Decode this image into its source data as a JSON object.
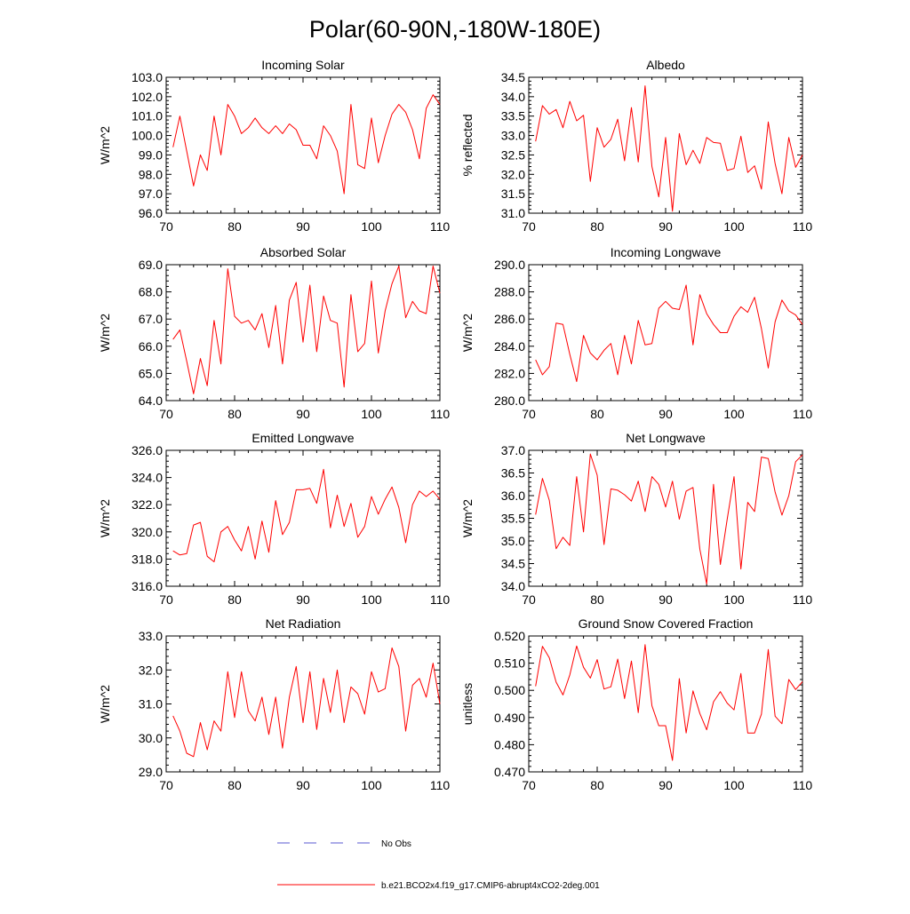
{
  "figure": {
    "title": "Polar(60-90N,-180W-180E)"
  },
  "legend": {
    "entries": [
      {
        "label": "No Obs",
        "color": "#5a5ad0",
        "style": "dashed"
      },
      {
        "label": "b.e21.BCO2x4.f19_g17.CMIP6-abrupt4xCO2-2deg.001",
        "color": "#ff0000",
        "style": "solid"
      }
    ]
  },
  "chart_data": [
    {
      "type": "line",
      "title": "Incoming Solar",
      "xlabel": "",
      "ylabel": "W/m^2",
      "xlim": [
        70,
        110
      ],
      "ylim": [
        96,
        103
      ],
      "xticks": [
        70,
        80,
        90,
        100,
        110
      ],
      "yticks": [
        96,
        97,
        98,
        99,
        100,
        101,
        102,
        103
      ],
      "ytick_labels": [
        "96.0",
        "97.0",
        "98.0",
        "99.0",
        "100.0",
        "101.0",
        "102.0",
        "103.0"
      ],
      "series": [
        {
          "name": "b.e21.BCO2x4.f19_g17.CMIP6-abrupt4xCO2-2deg.001",
          "color": "#ff0000",
          "x": [
            71,
            72,
            73,
            74,
            75,
            76,
            77,
            78,
            79,
            80,
            81,
            82,
            83,
            84,
            85,
            86,
            87,
            88,
            89,
            90,
            91,
            92,
            93,
            94,
            95,
            96,
            97,
            98,
            99,
            100,
            101,
            102,
            103,
            104,
            105,
            106,
            107,
            108,
            109,
            110
          ],
          "values": [
            99.4,
            101.0,
            99.2,
            97.4,
            99.0,
            98.2,
            101.0,
            99.0,
            101.6,
            101.0,
            100.1,
            100.4,
            100.9,
            100.4,
            100.1,
            100.5,
            100.1,
            100.6,
            100.3,
            99.5,
            99.5,
            98.8,
            100.5,
            100.0,
            99.2,
            97.0,
            101.6,
            98.5,
            98.3,
            100.9,
            98.6,
            100.0,
            101.1,
            101.6,
            101.2,
            100.3,
            98.8,
            101.4,
            102.1,
            101.6
          ]
        }
      ]
    },
    {
      "type": "line",
      "title": "Albedo",
      "xlabel": "",
      "ylabel": "% reflected",
      "xlim": [
        70,
        110
      ],
      "ylim": [
        31,
        34.5
      ],
      "xticks": [
        70,
        80,
        90,
        100,
        110
      ],
      "yticks": [
        31.0,
        31.5,
        32.0,
        32.5,
        33.0,
        33.5,
        34.0,
        34.5
      ],
      "ytick_labels": [
        "31.0",
        "31.5",
        "32.0",
        "32.5",
        "33.0",
        "33.5",
        "34.0",
        "34.5"
      ],
      "series": [
        {
          "name": "b.e21.BCO2x4.f19_g17.CMIP6-abrupt4xCO2-2deg.001",
          "color": "#ff0000",
          "x": [
            71,
            72,
            73,
            74,
            75,
            76,
            77,
            78,
            79,
            80,
            81,
            82,
            83,
            84,
            85,
            86,
            87,
            88,
            89,
            90,
            91,
            92,
            93,
            94,
            95,
            96,
            97,
            98,
            99,
            100,
            101,
            102,
            103,
            104,
            105,
            106,
            107,
            108,
            109,
            110
          ],
          "values": [
            32.85,
            33.77,
            33.55,
            33.67,
            33.2,
            33.88,
            33.38,
            33.52,
            31.82,
            33.2,
            32.7,
            32.9,
            33.42,
            32.35,
            33.72,
            32.32,
            34.28,
            32.2,
            31.42,
            32.95,
            31.05,
            33.05,
            32.25,
            32.62,
            32.28,
            32.95,
            32.82,
            32.8,
            32.1,
            32.15,
            32.98,
            32.05,
            32.22,
            31.62,
            33.35,
            32.28,
            31.5,
            32.95,
            32.18,
            32.5
          ]
        }
      ]
    },
    {
      "type": "line",
      "title": "Absorbed Solar",
      "xlabel": "",
      "ylabel": "W/m^2",
      "xlim": [
        70,
        110
      ],
      "ylim": [
        64,
        69
      ],
      "xticks": [
        70,
        80,
        90,
        100,
        110
      ],
      "yticks": [
        64,
        65,
        66,
        67,
        68,
        69
      ],
      "ytick_labels": [
        "64.0",
        "65.0",
        "66.0",
        "67.0",
        "68.0",
        "69.0"
      ],
      "series": [
        {
          "name": "b.e21.BCO2x4.f19_g17.CMIP6-abrupt4xCO2-2deg.001",
          "color": "#ff0000",
          "x": [
            71,
            72,
            73,
            74,
            75,
            76,
            77,
            78,
            79,
            80,
            81,
            82,
            83,
            84,
            85,
            86,
            87,
            88,
            89,
            90,
            91,
            92,
            93,
            94,
            95,
            96,
            97,
            98,
            99,
            100,
            101,
            102,
            103,
            104,
            105,
            106,
            107,
            108,
            109,
            110
          ],
          "values": [
            66.25,
            66.6,
            65.45,
            64.25,
            65.55,
            64.55,
            66.95,
            65.35,
            68.85,
            67.1,
            66.85,
            66.95,
            66.6,
            67.2,
            65.95,
            67.5,
            65.35,
            67.7,
            68.35,
            66.15,
            68.25,
            65.8,
            67.85,
            66.95,
            66.85,
            64.5,
            67.9,
            65.8,
            66.1,
            68.4,
            65.75,
            67.3,
            68.3,
            68.95,
            67.05,
            67.65,
            67.3,
            67.2,
            68.95,
            67.95
          ]
        }
      ]
    },
    {
      "type": "line",
      "title": "Incoming Longwave",
      "xlabel": "",
      "ylabel": "W/m^2",
      "xlim": [
        70,
        110
      ],
      "ylim": [
        280,
        290
      ],
      "xticks": [
        70,
        80,
        90,
        100,
        110
      ],
      "yticks": [
        280,
        282,
        284,
        286,
        288,
        290
      ],
      "ytick_labels": [
        "280.0",
        "282.0",
        "284.0",
        "286.0",
        "288.0",
        "290.0"
      ],
      "series": [
        {
          "name": "b.e21.BCO2x4.f19_g17.CMIP6-abrupt4xCO2-2deg.001",
          "color": "#ff0000",
          "x": [
            71,
            72,
            73,
            74,
            75,
            76,
            77,
            78,
            79,
            80,
            81,
            82,
            83,
            84,
            85,
            86,
            87,
            88,
            89,
            90,
            91,
            92,
            93,
            94,
            95,
            96,
            97,
            98,
            99,
            100,
            101,
            102,
            103,
            104,
            105,
            106,
            107,
            108,
            109,
            110
          ],
          "values": [
            283.0,
            281.9,
            282.5,
            285.7,
            285.6,
            283.4,
            281.4,
            284.8,
            283.5,
            283.0,
            283.7,
            284.2,
            281.9,
            284.8,
            282.7,
            285.9,
            284.1,
            284.2,
            286.8,
            287.3,
            286.8,
            286.7,
            288.5,
            284.1,
            287.8,
            286.4,
            285.6,
            285.0,
            285.0,
            286.2,
            286.9,
            286.5,
            287.6,
            285.3,
            282.4,
            285.8,
            287.4,
            286.6,
            286.3,
            285.6
          ]
        }
      ]
    },
    {
      "type": "line",
      "title": "Emitted Longwave",
      "xlabel": "",
      "ylabel": "W/m^2",
      "xlim": [
        70,
        110
      ],
      "ylim": [
        316,
        326
      ],
      "xticks": [
        70,
        80,
        90,
        100,
        110
      ],
      "yticks": [
        316,
        318,
        320,
        322,
        324,
        326
      ],
      "ytick_labels": [
        "316.0",
        "318.0",
        "320.0",
        "322.0",
        "324.0",
        "326.0"
      ],
      "series": [
        {
          "name": "b.e21.BCO2x4.f19_g17.CMIP6-abrupt4xCO2-2deg.001",
          "color": "#ff0000",
          "x": [
            71,
            72,
            73,
            74,
            75,
            76,
            77,
            78,
            79,
            80,
            81,
            82,
            83,
            84,
            85,
            86,
            87,
            88,
            89,
            90,
            91,
            92,
            93,
            94,
            95,
            96,
            97,
            98,
            99,
            100,
            101,
            102,
            103,
            104,
            105,
            106,
            107,
            108,
            109,
            110
          ],
          "values": [
            318.6,
            318.3,
            318.4,
            320.5,
            320.7,
            318.2,
            317.8,
            320.0,
            320.4,
            319.4,
            318.6,
            320.4,
            318.0,
            320.8,
            318.5,
            322.3,
            319.8,
            320.7,
            323.1,
            323.1,
            323.2,
            322.1,
            324.6,
            320.3,
            322.7,
            320.4,
            322.1,
            319.6,
            320.4,
            322.6,
            321.3,
            322.4,
            323.3,
            321.8,
            319.2,
            322.0,
            323.0,
            322.6,
            323.0,
            322.4
          ]
        }
      ]
    },
    {
      "type": "line",
      "title": "Net Longwave",
      "xlabel": "",
      "ylabel": "W/m^2",
      "xlim": [
        70,
        110
      ],
      "ylim": [
        34,
        37
      ],
      "xticks": [
        70,
        80,
        90,
        100,
        110
      ],
      "yticks": [
        34.0,
        34.5,
        35.0,
        35.5,
        36.0,
        36.5,
        37.0
      ],
      "ytick_labels": [
        "34.0",
        "34.5",
        "35.0",
        "35.5",
        "36.0",
        "36.5",
        "37.0"
      ],
      "series": [
        {
          "name": "b.e21.BCO2x4.f19_g17.CMIP6-abrupt4xCO2-2deg.001",
          "color": "#ff0000",
          "x": [
            71,
            72,
            73,
            74,
            75,
            76,
            77,
            78,
            79,
            80,
            81,
            82,
            83,
            84,
            85,
            86,
            87,
            88,
            89,
            90,
            91,
            92,
            93,
            94,
            95,
            96,
            97,
            98,
            99,
            100,
            101,
            102,
            103,
            104,
            105,
            106,
            107,
            108,
            109,
            110
          ],
          "values": [
            35.58,
            36.38,
            35.9,
            34.83,
            35.08,
            34.9,
            36.42,
            35.2,
            36.92,
            36.45,
            34.92,
            36.15,
            36.12,
            36.02,
            35.88,
            36.32,
            35.65,
            36.42,
            36.25,
            35.75,
            36.32,
            35.48,
            36.1,
            36.18,
            34.82,
            34.05,
            36.25,
            34.48,
            35.48,
            36.42,
            34.38,
            35.85,
            35.65,
            36.85,
            36.82,
            36.08,
            35.57,
            36.0,
            36.75,
            36.9
          ]
        }
      ]
    },
    {
      "type": "line",
      "title": "Net Radiation",
      "xlabel": "",
      "ylabel": "W/m^2",
      "xlim": [
        70,
        110
      ],
      "ylim": [
        29,
        33
      ],
      "xticks": [
        70,
        80,
        90,
        100,
        110
      ],
      "yticks": [
        29,
        30,
        31,
        32,
        33
      ],
      "ytick_labels": [
        "29.0",
        "30.0",
        "31.0",
        "32.0",
        "33.0"
      ],
      "series": [
        {
          "name": "b.e21.BCO2x4.f19_g17.CMIP6-abrupt4xCO2-2deg.001",
          "color": "#ff0000",
          "x": [
            71,
            72,
            73,
            74,
            75,
            76,
            77,
            78,
            79,
            80,
            81,
            82,
            83,
            84,
            85,
            86,
            87,
            88,
            89,
            90,
            91,
            92,
            93,
            94,
            95,
            96,
            97,
            98,
            99,
            100,
            101,
            102,
            103,
            104,
            105,
            106,
            107,
            108,
            109,
            110
          ],
          "values": [
            30.65,
            30.2,
            29.55,
            29.45,
            30.45,
            29.65,
            30.5,
            30.2,
            31.95,
            30.6,
            31.95,
            30.8,
            30.5,
            31.2,
            30.1,
            31.2,
            29.7,
            31.2,
            32.1,
            30.45,
            31.95,
            30.25,
            31.75,
            30.75,
            32.0,
            30.45,
            31.5,
            31.3,
            30.7,
            31.95,
            31.35,
            31.45,
            32.65,
            32.1,
            30.2,
            31.55,
            31.75,
            31.2,
            32.2,
            31.0
          ]
        }
      ]
    },
    {
      "type": "line",
      "title": "Ground Snow Covered Fraction",
      "xlabel": "",
      "ylabel": "unitless",
      "xlim": [
        70,
        110
      ],
      "ylim": [
        0.47,
        0.52
      ],
      "xticks": [
        70,
        80,
        90,
        100,
        110
      ],
      "yticks": [
        0.47,
        0.48,
        0.49,
        0.5,
        0.51,
        0.52
      ],
      "ytick_labels": [
        "0.470",
        "0.480",
        "0.490",
        "0.500",
        "0.510",
        "0.520"
      ],
      "series": [
        {
          "name": "b.e21.BCO2x4.f19_g17.CMIP6-abrupt4xCO2-2deg.001",
          "color": "#ff0000",
          "x": [
            71,
            72,
            73,
            74,
            75,
            76,
            77,
            78,
            79,
            80,
            81,
            82,
            83,
            84,
            85,
            86,
            87,
            88,
            89,
            90,
            91,
            92,
            93,
            94,
            95,
            96,
            97,
            98,
            99,
            100,
            101,
            102,
            103,
            104,
            105,
            106,
            107,
            108,
            109,
            110
          ],
          "values": [
            0.5015,
            0.5162,
            0.512,
            0.503,
            0.4983,
            0.5057,
            0.5163,
            0.5085,
            0.5045,
            0.5113,
            0.5005,
            0.5013,
            0.5115,
            0.497,
            0.5108,
            0.4918,
            0.5168,
            0.4943,
            0.487,
            0.487,
            0.4742,
            0.5043,
            0.4843,
            0.4998,
            0.4915,
            0.4855,
            0.4958,
            0.4995,
            0.4953,
            0.4928,
            0.5062,
            0.4843,
            0.4843,
            0.4912,
            0.515,
            0.4905,
            0.4877,
            0.504,
            0.5003,
            0.5032
          ]
        }
      ]
    }
  ]
}
